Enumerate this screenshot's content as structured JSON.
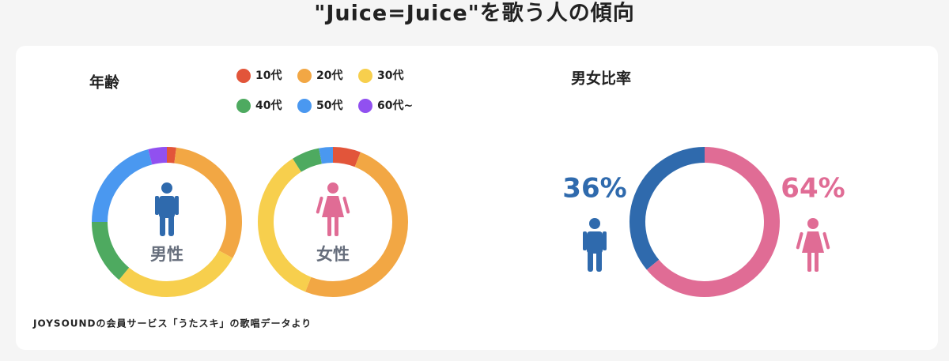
{
  "title": "\"Juice=Juice\"を歌う人の傾向",
  "note": "JOYSOUNDの会員サービス「うたスキ」の歌唱データより",
  "chart_data": [
    {
      "type": "donut",
      "title": "年齢",
      "categories": [
        "10代",
        "20代",
        "30代",
        "40代",
        "50代",
        "60代~"
      ],
      "colors": [
        "#e2553a",
        "#f2a744",
        "#f7cf4d",
        "#4eaa60",
        "#4a98f0",
        "#9150f0"
      ],
      "series": [
        {
          "name": "男性",
          "values": [
            2,
            31,
            28,
            14,
            21,
            4
          ]
        },
        {
          "name": "女性",
          "values": [
            6,
            50,
            35,
            6,
            3,
            0
          ]
        }
      ]
    },
    {
      "type": "donut",
      "title": "男女比率",
      "values": [
        36,
        64
      ],
      "value_labels": [
        "36%",
        "64%"
      ],
      "colors": [
        "#2f6aad",
        "#e06c95"
      ]
    }
  ]
}
